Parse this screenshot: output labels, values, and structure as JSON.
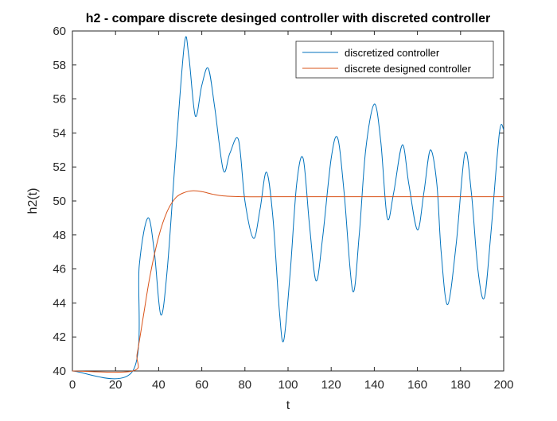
{
  "chart_data": {
    "type": "line",
    "title": "h2 - compare discrete desinged controller with discreted controller",
    "xlabel": "t",
    "ylabel": "h2(t)",
    "xlim": [
      0,
      200
    ],
    "ylim": [
      40,
      60
    ],
    "xticks": [
      "0",
      "20",
      "40",
      "60",
      "80",
      "100",
      "120",
      "140",
      "160",
      "180",
      "200"
    ],
    "yticks": [
      "40",
      "42",
      "44",
      "46",
      "48",
      "50",
      "52",
      "54",
      "56",
      "58",
      "60"
    ],
    "grid": false,
    "legend_position": "top-right",
    "series": [
      {
        "name": "discretized controller",
        "color": "#0072BD",
        "x": [
          0,
          28,
          31,
          35,
          38,
          41,
          44,
          48,
          52,
          54,
          57,
          60,
          63,
          66,
          70,
          73,
          77,
          80,
          84,
          87,
          90,
          93,
          96,
          98,
          101,
          104,
          107,
          110,
          113,
          116,
          120,
          123,
          126,
          130,
          133,
          136,
          140,
          143,
          146,
          149,
          153,
          156,
          160,
          163,
          166,
          169,
          171,
          174,
          178,
          182,
          185,
          188,
          191,
          194,
          198,
          200
        ],
        "y": [
          40,
          40.0,
          46.2,
          49.0,
          47.0,
          43.3,
          46.0,
          53.0,
          59.3,
          58.5,
          55.0,
          56.8,
          57.8,
          55.5,
          51.8,
          52.8,
          53.6,
          50.0,
          47.8,
          49.5,
          51.7,
          49.0,
          43.5,
          41.8,
          45.8,
          51.0,
          52.5,
          48.5,
          45.3,
          47.8,
          52.5,
          53.7,
          50.5,
          44.7,
          48.0,
          53.0,
          55.7,
          53.5,
          49.0,
          50.5,
          53.3,
          51.0,
          48.3,
          50.5,
          53.0,
          51.0,
          47.0,
          43.9,
          47.5,
          52.8,
          50.5,
          46.0,
          44.3,
          48.0,
          54.0,
          54.2
        ]
      },
      {
        "name": "discrete designed controller",
        "color": "#D95319",
        "x": [
          0,
          28,
          30,
          33,
          36,
          40,
          44,
          48,
          52,
          56,
          60,
          65,
          70,
          80,
          90,
          100,
          120,
          150,
          200
        ],
        "y": [
          40,
          40.0,
          41.0,
          43.3,
          45.6,
          47.9,
          49.4,
          50.2,
          50.5,
          50.6,
          50.55,
          50.4,
          50.3,
          50.25,
          50.25,
          50.25,
          50.25,
          50.25,
          50.25
        ]
      }
    ]
  }
}
